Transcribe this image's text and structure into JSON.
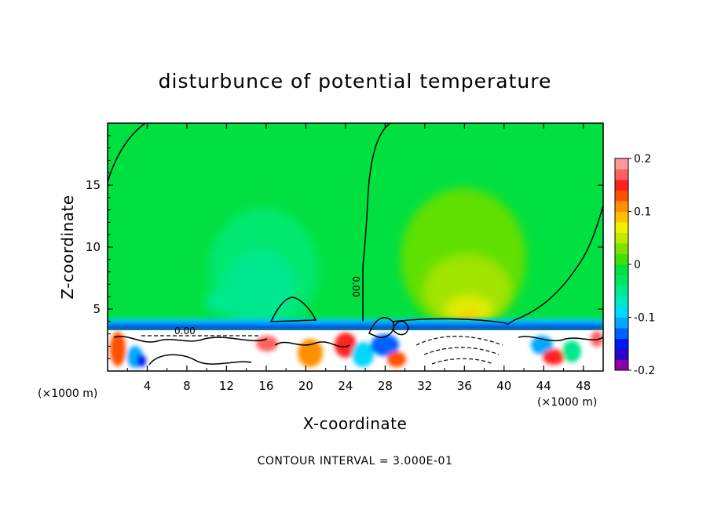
{
  "chart_data": {
    "type": "heatmap",
    "title": "disturbunce of potential temperature",
    "xlabel": "X-coordinate",
    "ylabel": "Z-coordinate",
    "x_unit": "(×1000 m)",
    "y_unit": "(×1000 m)",
    "xlim": [
      0,
      50
    ],
    "ylim": [
      0,
      20
    ],
    "x_ticks": [
      4,
      8,
      12,
      16,
      20,
      24,
      28,
      32,
      36,
      40,
      44,
      48
    ],
    "y_ticks": [
      5,
      10,
      15
    ],
    "colorbar": {
      "range": [
        -0.2,
        0.2
      ],
      "ticks": [
        0.2,
        0.1,
        0,
        -0.1,
        -0.2
      ],
      "tick_labels": [
        "0.2",
        "0.1",
        "0",
        "-0.1",
        "-0.2"
      ],
      "colors": [
        "#8b00a8",
        "#2f00c8",
        "#0018f0",
        "#0060ff",
        "#00a8ff",
        "#00d8ff",
        "#00e8c8",
        "#00e890",
        "#00e860",
        "#00e040",
        "#40e000",
        "#80e000",
        "#c0e800",
        "#f0f000",
        "#ffc000",
        "#ff9000",
        "#ff5000",
        "#ff2020",
        "#ff6060",
        "#ff9898"
      ]
    },
    "contour_interval": "3.000E-01",
    "footer": "CONTOUR INTERVAL = 3.000E-01",
    "contour_labels": [
      "0.00",
      "0.00"
    ],
    "features": [
      {
        "name": "left-cool-plume",
        "x_center": 18,
        "z_center": 8,
        "value": -0.03
      },
      {
        "name": "right-warm-plume",
        "x_center": 36,
        "z_center": 8,
        "value": 0.08
      },
      {
        "name": "right-warm-core",
        "x_center": 36,
        "z_center": 5,
        "value": 0.13
      },
      {
        "name": "boundary-layer-band",
        "z_top": 3.5,
        "value": -0.12
      }
    ]
  }
}
